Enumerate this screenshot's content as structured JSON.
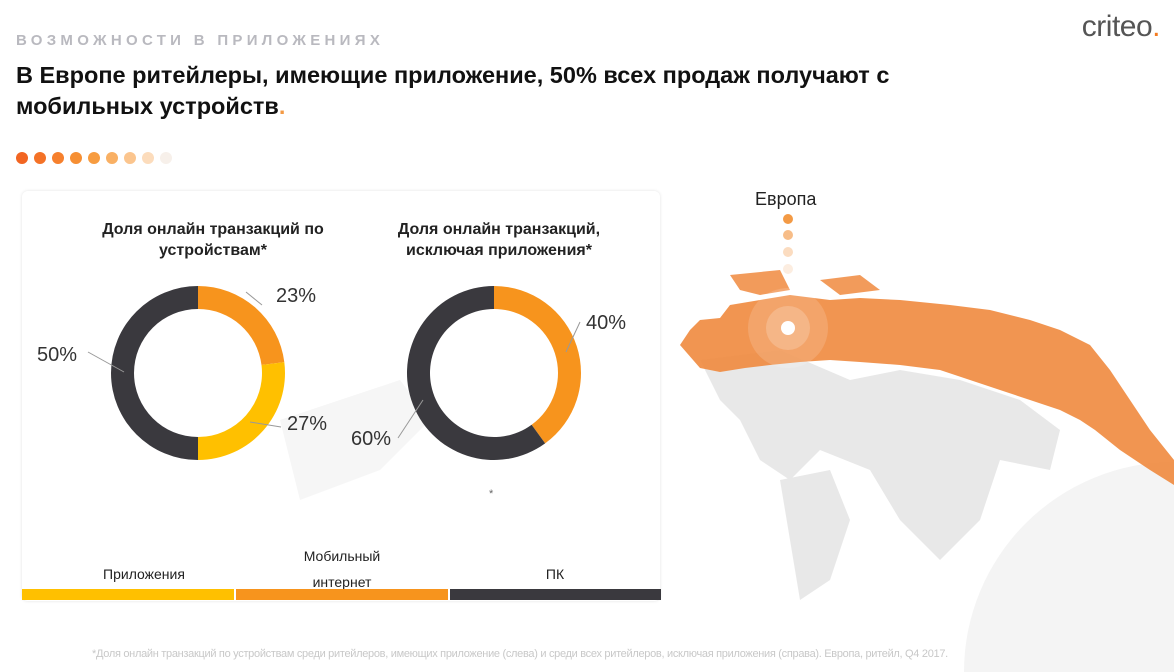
{
  "logo": {
    "text": "criteo",
    "mark": "."
  },
  "kicker": "ВОЗМОЖНОСТИ В ПРИЛОЖЕНИЯХ",
  "title": {
    "text": "В Европе ритейлеры, имеющие приложение, 50% всех продаж получают с мобильных устройств",
    "accent": "."
  },
  "colors": {
    "apps": "#ffc000",
    "mobile_web": "#f7941d",
    "pc": "#3a393e",
    "accent": "#f47b20"
  },
  "progress_dots": [
    "#f26522",
    "#f47227",
    "#f6802d",
    "#f68f33",
    "#f79c40",
    "#f9b064",
    "#fbc58e",
    "#fcdcbc",
    "#f7f0ea"
  ],
  "chart_data": [
    {
      "type": "pie",
      "title": "Доля онлайн транзакций по устройствам*",
      "categories": [
        "Мобильный интернет",
        "Приложения",
        "ПК"
      ],
      "values": [
        23,
        27,
        50
      ],
      "labels": [
        "23%",
        "27%",
        "50%"
      ]
    },
    {
      "type": "pie",
      "title": "Доля онлайн транзакций, исключая приложения*",
      "categories": [
        "Мобильный интернет",
        "ПК"
      ],
      "values": [
        40,
        60
      ],
      "labels": [
        "40%",
        "60%"
      ]
    }
  ],
  "legend": [
    {
      "label": "Приложения",
      "key": "apps"
    },
    {
      "label": "Мобильный интернет",
      "line1": "Мобильный",
      "line2": "интернет",
      "key": "mobile_web"
    },
    {
      "label": "ПК",
      "key": "pc"
    }
  ],
  "asterisk": "*",
  "map": {
    "region_label": "Европа"
  },
  "footnote": "*Доля онлайн транзакций по устройствам среди ритейлеров, имеющих приложение (слева) и среди всех ритейлеров, исключая приложения (справа). Европа, ритейл, Q4 2017."
}
